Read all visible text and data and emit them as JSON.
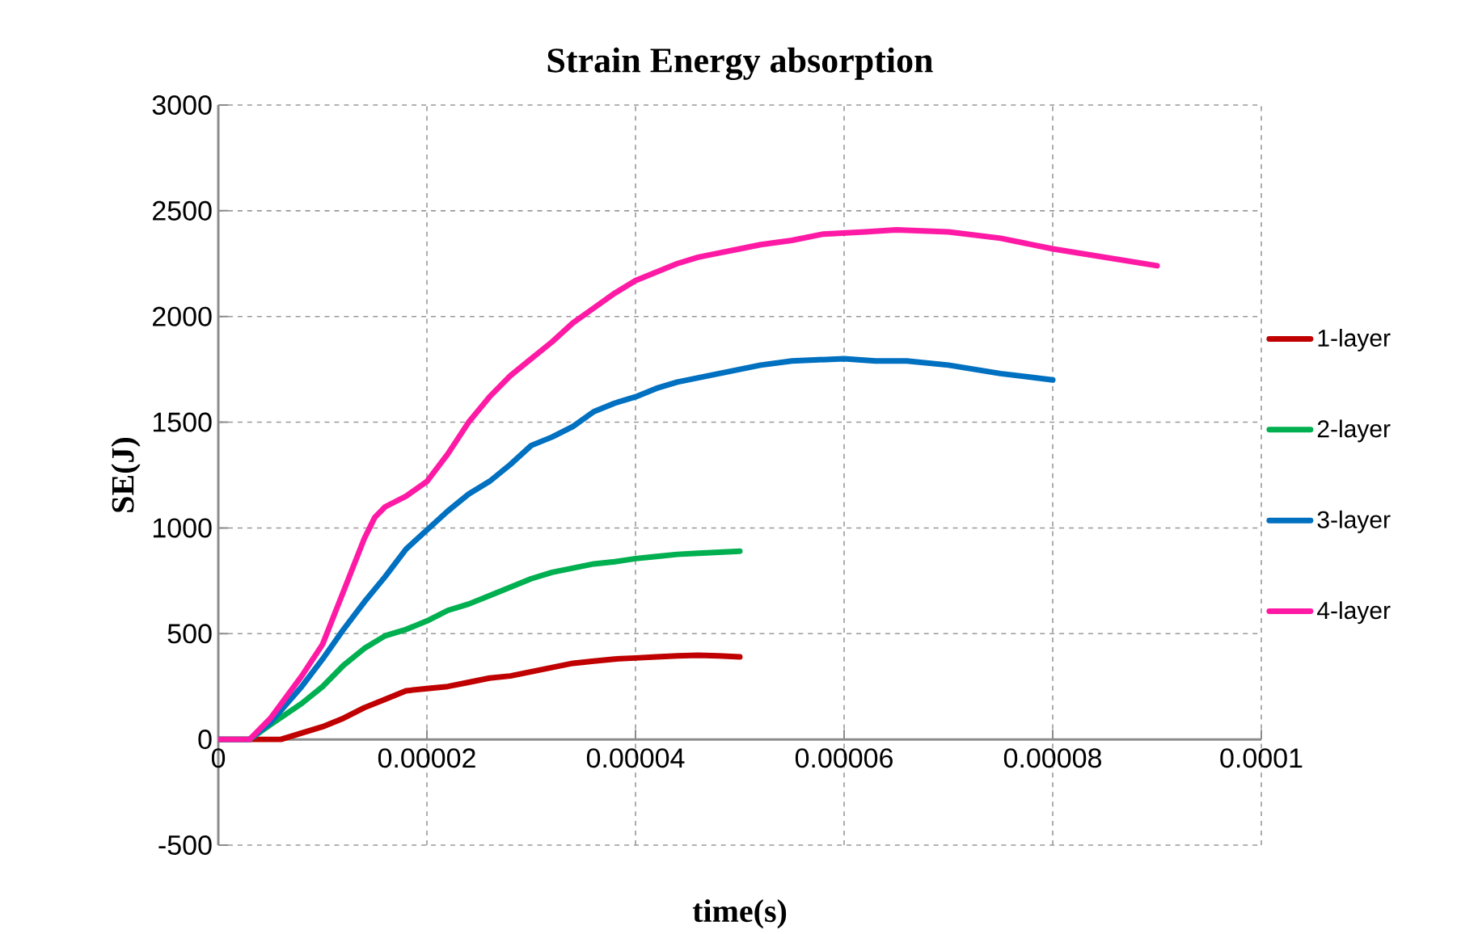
{
  "chart_data": {
    "type": "line",
    "title": "Strain Energy absorption",
    "xlabel": "time(s)",
    "ylabel": "SE(J)",
    "xlim": [
      0,
      0.0001
    ],
    "ylim": [
      -500,
      3000
    ],
    "xticks": [
      {
        "value": 0,
        "label": "0"
      },
      {
        "value": 2e-05,
        "label": "0.00002"
      },
      {
        "value": 4e-05,
        "label": "0.00004"
      },
      {
        "value": 6e-05,
        "label": "0.00006"
      },
      {
        "value": 8e-05,
        "label": "0.00008"
      },
      {
        "value": 0.0001,
        "label": "0.0001"
      }
    ],
    "yticks": [
      -500,
      0,
      500,
      1000,
      1500,
      2000,
      2500,
      3000
    ],
    "grid": true,
    "legend": "right",
    "marker": "none",
    "line_style": "solid",
    "series": [
      {
        "name": "1-layer",
        "color": "#c00000",
        "x": [
          0,
          6e-06,
          8e-06,
          1e-05,
          1.2e-05,
          1.4e-05,
          1.6e-05,
          1.8e-05,
          2e-05,
          2.2e-05,
          2.4e-05,
          2.6e-05,
          2.8e-05,
          3e-05,
          3.2e-05,
          3.4e-05,
          3.6e-05,
          3.8e-05,
          4e-05,
          4.2e-05,
          4.4e-05,
          4.6e-05,
          4.8e-05,
          5e-05
        ],
        "values": [
          0,
          0,
          30,
          60,
          100,
          150,
          190,
          230,
          240,
          250,
          270,
          290,
          300,
          320,
          340,
          360,
          370,
          380,
          385,
          390,
          395,
          398,
          395,
          390
        ]
      },
      {
        "name": "2-layer",
        "color": "#00b050",
        "x": [
          0,
          3e-06,
          5e-06,
          8e-06,
          1e-05,
          1.2e-05,
          1.4e-05,
          1.6e-05,
          1.8e-05,
          2e-05,
          2.2e-05,
          2.4e-05,
          2.6e-05,
          2.8e-05,
          3e-05,
          3.2e-05,
          3.4e-05,
          3.6e-05,
          3.8e-05,
          4e-05,
          4.2e-05,
          4.4e-05,
          4.6e-05,
          4.8e-05,
          5e-05
        ],
        "values": [
          0,
          0,
          70,
          170,
          250,
          350,
          430,
          490,
          520,
          560,
          610,
          640,
          680,
          720,
          760,
          790,
          810,
          830,
          840,
          855,
          865,
          875,
          880,
          885,
          890
        ]
      },
      {
        "name": "3-layer",
        "color": "#0070c0",
        "x": [
          0,
          3e-06,
          5e-06,
          8e-06,
          1e-05,
          1.2e-05,
          1.4e-05,
          1.6e-05,
          1.8e-05,
          2e-05,
          2.2e-05,
          2.4e-05,
          2.6e-05,
          2.8e-05,
          3e-05,
          3.2e-05,
          3.4e-05,
          3.6e-05,
          3.8e-05,
          4e-05,
          4.2e-05,
          4.4e-05,
          4.6e-05,
          4.8e-05,
          5e-05,
          5.2e-05,
          5.5e-05,
          6e-05,
          6.3e-05,
          6.6e-05,
          7e-05,
          7.5e-05,
          8e-05
        ],
        "values": [
          0,
          0,
          80,
          250,
          380,
          520,
          650,
          770,
          900,
          990,
          1080,
          1160,
          1220,
          1300,
          1390,
          1430,
          1480,
          1550,
          1590,
          1620,
          1660,
          1690,
          1710,
          1730,
          1750,
          1770,
          1790,
          1800,
          1790,
          1790,
          1770,
          1730,
          1700
        ]
      },
      {
        "name": "4-layer",
        "color": "#ff1aa5",
        "x": [
          0,
          3e-06,
          5e-06,
          8e-06,
          1e-05,
          1.2e-05,
          1.4e-05,
          1.5e-05,
          1.6e-05,
          1.8e-05,
          2e-05,
          2.2e-05,
          2.4e-05,
          2.6e-05,
          2.8e-05,
          3e-05,
          3.2e-05,
          3.4e-05,
          3.6e-05,
          3.8e-05,
          4e-05,
          4.2e-05,
          4.4e-05,
          4.6e-05,
          4.8e-05,
          5e-05,
          5.2e-05,
          5.5e-05,
          5.8e-05,
          6.2e-05,
          6.5e-05,
          7e-05,
          7.5e-05,
          8e-05,
          8.5e-05,
          9e-05
        ],
        "values": [
          0,
          0,
          100,
          300,
          450,
          700,
          950,
          1050,
          1100,
          1150,
          1220,
          1350,
          1500,
          1620,
          1720,
          1800,
          1880,
          1970,
          2040,
          2110,
          2170,
          2210,
          2250,
          2280,
          2300,
          2320,
          2340,
          2360,
          2390,
          2400,
          2410,
          2400,
          2370,
          2320,
          2280,
          2240
        ]
      }
    ]
  }
}
